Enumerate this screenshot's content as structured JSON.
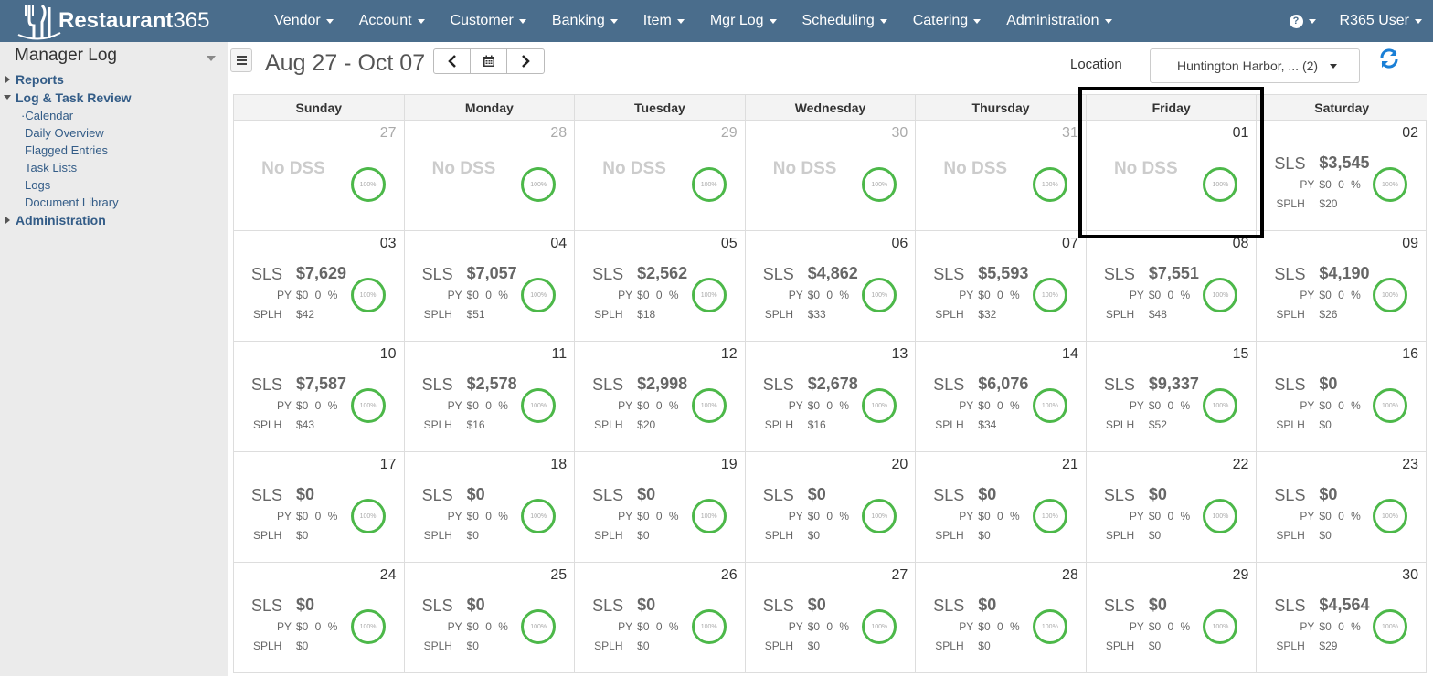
{
  "brand": {
    "name": "Restaurant",
    "num": "365"
  },
  "nav": {
    "items": [
      "Vendor",
      "Account",
      "Customer",
      "Banking",
      "Item",
      "Mgr Log",
      "Scheduling",
      "Catering",
      "Administration"
    ],
    "help_icon": "?",
    "user": "R365 User"
  },
  "sidebar": {
    "title": "Manager Log",
    "reports": "Reports",
    "log_task_review": "Log & Task Review",
    "subitems": [
      "·Calendar",
      "Daily Overview",
      "Flagged Entries",
      "Task Lists",
      "Logs",
      "Document Library"
    ],
    "administration": "Administration"
  },
  "toolbar": {
    "date_range": "Aug 27 - Oct 07",
    "location_label": "Location",
    "location_value": "Huntington Harbor, ... (2)"
  },
  "calendar": {
    "weekdays": [
      "Sunday",
      "Monday",
      "Tuesday",
      "Wednesday",
      "Thursday",
      "Friday",
      "Saturday"
    ],
    "labels": {
      "sls": "SLS",
      "py": "PY",
      "splh": "SPLH",
      "no_dss": "No DSS",
      "ring": "100%"
    },
    "days": [
      {
        "d": "27",
        "faded": true,
        "nodss": true
      },
      {
        "d": "28",
        "faded": true,
        "nodss": true
      },
      {
        "d": "29",
        "faded": true,
        "nodss": true
      },
      {
        "d": "30",
        "faded": true,
        "nodss": true
      },
      {
        "d": "31",
        "faded": true,
        "nodss": true
      },
      {
        "d": "01",
        "nodss": true
      },
      {
        "d": "02",
        "sls": "$3,545",
        "py": "$0 0 %",
        "splh": "$20"
      },
      {
        "d": "03",
        "sls": "$7,629",
        "py": "$0 0 %",
        "splh": "$42"
      },
      {
        "d": "04",
        "sls": "$7,057",
        "py": "$0 0 %",
        "splh": "$51"
      },
      {
        "d": "05",
        "sls": "$2,562",
        "py": "$0 0 %",
        "splh": "$18"
      },
      {
        "d": "06",
        "sls": "$4,862",
        "py": "$0 0 %",
        "splh": "$33"
      },
      {
        "d": "07",
        "sls": "$5,593",
        "py": "$0 0 %",
        "splh": "$32"
      },
      {
        "d": "08",
        "sls": "$7,551",
        "py": "$0 0 %",
        "splh": "$48"
      },
      {
        "d": "09",
        "sls": "$4,190",
        "py": "$0 0 %",
        "splh": "$26"
      },
      {
        "d": "10",
        "sls": "$7,587",
        "py": "$0 0 %",
        "splh": "$43"
      },
      {
        "d": "11",
        "sls": "$2,578",
        "py": "$0 0 %",
        "splh": "$16"
      },
      {
        "d": "12",
        "sls": "$2,998",
        "py": "$0 0 %",
        "splh": "$20"
      },
      {
        "d": "13",
        "sls": "$2,678",
        "py": "$0 0 %",
        "splh": "$16"
      },
      {
        "d": "14",
        "sls": "$6,076",
        "py": "$0 0 %",
        "splh": "$34"
      },
      {
        "d": "15",
        "sls": "$9,337",
        "py": "$0 0 %",
        "splh": "$52"
      },
      {
        "d": "16",
        "sls": "$0",
        "py": "$0 0 %",
        "splh": "$0"
      },
      {
        "d": "17",
        "sls": "$0",
        "py": "$0 0 %",
        "splh": "$0"
      },
      {
        "d": "18",
        "sls": "$0",
        "py": "$0 0 %",
        "splh": "$0"
      },
      {
        "d": "19",
        "sls": "$0",
        "py": "$0 0 %",
        "splh": "$0"
      },
      {
        "d": "20",
        "sls": "$0",
        "py": "$0 0 %",
        "splh": "$0"
      },
      {
        "d": "21",
        "sls": "$0",
        "py": "$0 0 %",
        "splh": "$0"
      },
      {
        "d": "22",
        "sls": "$0",
        "py": "$0 0 %",
        "splh": "$0"
      },
      {
        "d": "23",
        "sls": "$0",
        "py": "$0 0 %",
        "splh": "$0"
      },
      {
        "d": "24",
        "sls": "$0",
        "py": "$0 0 %",
        "splh": "$0"
      },
      {
        "d": "25",
        "sls": "$0",
        "py": "$0 0 %",
        "splh": "$0"
      },
      {
        "d": "26",
        "sls": "$0",
        "py": "$0 0 %",
        "splh": "$0"
      },
      {
        "d": "27",
        "sls": "$0",
        "py": "$0 0 %",
        "splh": "$0"
      },
      {
        "d": "28",
        "sls": "$0",
        "py": "$0 0 %",
        "splh": "$0"
      },
      {
        "d": "29",
        "sls": "$0",
        "py": "$0 0 %",
        "splh": "$0"
      },
      {
        "d": "30",
        "sls": "$4,564",
        "py": "$0 0 %",
        "splh": "$29"
      }
    ]
  },
  "colors": {
    "nav_bg": "#4a6d8c",
    "ring": "#4cb849",
    "link": "#335c87"
  }
}
